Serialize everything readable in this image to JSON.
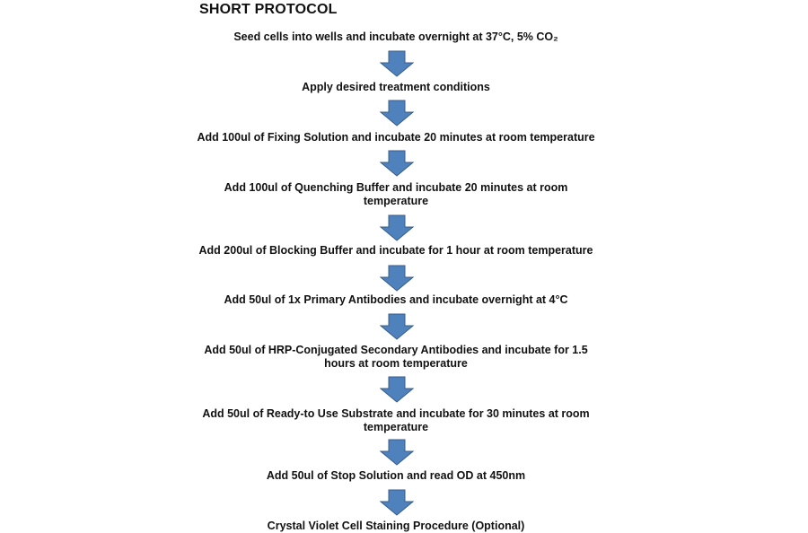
{
  "title": "SHORT PROTOCOL",
  "arrow_color": "#4f81bd",
  "arrow_outline": "#385d8a",
  "steps": [
    {
      "lines": [
        "Seed cells into wells and incubate overnight at 37°C, 5% CO₂"
      ]
    },
    {
      "lines": [
        "Apply desired treatment conditions"
      ]
    },
    {
      "lines": [
        "Add 100ul of Fixing Solution and incubate 20 minutes at room temperature"
      ]
    },
    {
      "lines": [
        "Add 100ul of Quenching Buffer and incubate 20 minutes at room",
        "temperature"
      ]
    },
    {
      "lines": [
        "Add 200ul of Blocking Buffer and incubate for 1 hour at room temperature"
      ]
    },
    {
      "lines": [
        "Add 50ul of 1x Primary Antibodies and incubate overnight at 4°C"
      ]
    },
    {
      "lines": [
        "Add 50ul of HRP-Conjugated Secondary Antibodies and incubate for 1.5",
        "hours at room temperature"
      ]
    },
    {
      "lines": [
        "Add 50ul of Ready-to Use Substrate and incubate for 30 minutes at room",
        "temperature"
      ]
    },
    {
      "lines": [
        "Add 50ul of Stop Solution and read OD at 450nm"
      ]
    },
    {
      "lines": [
        "Crystal Violet Cell Staining Procedure (Optional)"
      ]
    }
  ]
}
